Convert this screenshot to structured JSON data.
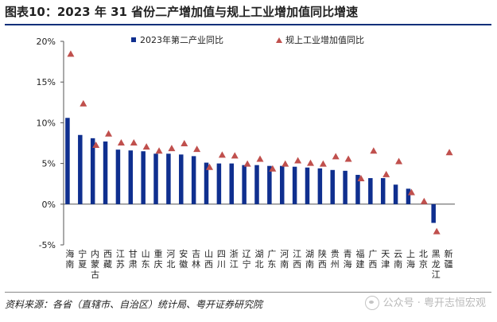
{
  "header": {
    "title": "图表10：2023 年 31 省份二产增加值与规上工业增加值同比增速"
  },
  "footer": {
    "source": "资料来源：各省（直辖市、自治区）统计局、粤开证券研究院",
    "watermark": "公众号 · 粤开志恒宏观"
  },
  "chart_data": {
    "type": "bar",
    "categories": [
      "海南",
      "宁夏",
      "内蒙古",
      "西藏",
      "江苏",
      "甘肃",
      "山东",
      "重庆",
      "河北",
      "安徽",
      "吉林",
      "山西",
      "四川",
      "浙江",
      "辽宁",
      "湖北",
      "广东",
      "河南",
      "江西",
      "湖南",
      "陕西",
      "贵州",
      "青海",
      "福建",
      "广西",
      "天津",
      "云南",
      "上海",
      "北京",
      "黑龙江",
      "新疆"
    ],
    "series": [
      {
        "name": "2023年第二产业同比",
        "kind": "bar",
        "color": "#0f2f8f",
        "values": [
          10.6,
          8.5,
          8.1,
          7.7,
          6.7,
          6.6,
          6.5,
          6.2,
          6.2,
          6.1,
          5.9,
          5.1,
          5.0,
          5.0,
          4.8,
          4.8,
          4.7,
          4.7,
          4.6,
          4.5,
          4.4,
          4.2,
          4.1,
          3.6,
          3.2,
          3.2,
          2.4,
          1.9,
          null,
          -2.3,
          null
        ]
      },
      {
        "name": "规上工业增加值同比",
        "kind": "marker",
        "marker": "triangle",
        "color": "#c0504d",
        "values": [
          18.5,
          12.4,
          7.3,
          8.7,
          7.6,
          7.6,
          7.1,
          6.6,
          6.9,
          7.5,
          6.8,
          4.6,
          6.1,
          6.0,
          5.0,
          5.6,
          4.4,
          5.0,
          5.4,
          5.1,
          5.0,
          5.9,
          5.6,
          3.2,
          6.6,
          3.7,
          5.3,
          1.5,
          0.4,
          -3.3,
          6.4
        ]
      }
    ],
    "yticks": [
      "20%",
      "15%",
      "10%",
      "5%",
      "0%",
      "-5%"
    ],
    "ylim": [
      -5,
      20
    ],
    "xlabel": "",
    "ylabel": "",
    "legend_position": "top",
    "grid": false
  }
}
